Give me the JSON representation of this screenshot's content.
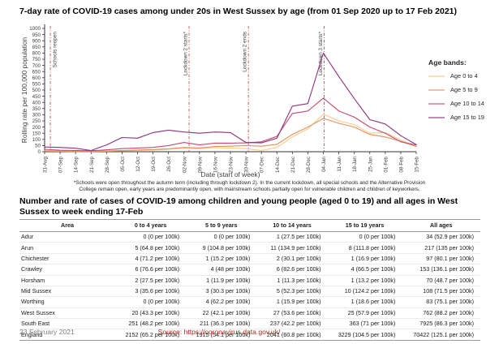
{
  "chart": {
    "title": "7-day rate of COVID-19 cases among under 20s in West Sussex by age (from 01 Sep 2020 up to 17 Feb 2021)",
    "legend_title": "Age bands:",
    "footnote_line1": "*Schools were open throughout the autumn term (including through lockdown 2). In the current lockdown, all special schools and the Alternative Provision",
    "footnote_line2": "College remain open, early years are predominantly open, with mainstream schools partially open for vulnerable children and children of keyworkers."
  },
  "chart_data": {
    "type": "line",
    "title": "7-day rate of COVID-19 cases among under 20s in West Sussex by age (from 01 Sep 2020 up to 17 Feb 2021)",
    "xlabel": "Date (start of week)",
    "ylabel": "Rolling rate per 100,000 population",
    "ylim": [
      0,
      1000
    ],
    "ytick_step": 50,
    "grid": false,
    "legend_position": "right",
    "x": [
      "31-Aug",
      "07-Sep",
      "14-Sep",
      "21-Sep",
      "28-Sep",
      "05-Oct",
      "12-Oct",
      "19-Oct",
      "26-Oct",
      "02-Nov",
      "09-Nov",
      "16-Nov",
      "23-Nov",
      "30-Nov",
      "07-Dec",
      "14-Dec",
      "21-Dec",
      "28-Dec",
      "04-Jan",
      "11-Jan",
      "18-Jan",
      "25-Jan",
      "01-Feb",
      "08-Feb",
      "15-Feb"
    ],
    "series": [
      {
        "name": "Age 0 to 4",
        "color": "#f8c98e",
        "values": [
          5,
          3,
          2,
          2,
          4,
          8,
          10,
          14,
          20,
          28,
          25,
          33,
          30,
          25,
          10,
          35,
          120,
          185,
          305,
          250,
          220,
          150,
          155,
          95,
          43
        ]
      },
      {
        "name": "Age 5 to 9",
        "color": "#e29061",
        "values": [
          8,
          5,
          4,
          3,
          6,
          10,
          14,
          18,
          24,
          35,
          30,
          42,
          45,
          50,
          45,
          60,
          140,
          200,
          270,
          230,
          200,
          140,
          120,
          85,
          42
        ]
      },
      {
        "name": "Age 10 to 14",
        "color": "#c64a6a",
        "values": [
          20,
          12,
          10,
          8,
          15,
          25,
          30,
          35,
          50,
          75,
          55,
          70,
          70,
          72,
          80,
          125,
          310,
          330,
          435,
          330,
          280,
          200,
          150,
          80,
          54
        ]
      },
      {
        "name": "Age 15 to 19",
        "color": "#8e3181",
        "values": [
          38,
          35,
          28,
          10,
          55,
          115,
          110,
          155,
          175,
          160,
          150,
          160,
          155,
          75,
          72,
          110,
          370,
          390,
          800,
          610,
          430,
          260,
          225,
          130,
          58
        ]
      }
    ],
    "vlines": [
      {
        "label": "Schools reopen",
        "week_index": 0.37
      },
      {
        "label": "Lockdown 2 starts*",
        "week_index": 9.33
      },
      {
        "label": "Lockdown 2 ends",
        "week_index": 13.16
      },
      {
        "label": "Lockdown 3 starts*",
        "week_index": 18.05
      }
    ],
    "vline_color": "#c0504d"
  },
  "table_section": {
    "title": "Number and rate of cases of COVID-19 among children and young people (aged 0 to 19) and all ages in West Sussex to week ending 17-Feb",
    "columns": [
      "Area",
      "0 to 4 years",
      "5 to 9 years",
      "10 to 14 years",
      "15 to 19 years",
      "All ages"
    ],
    "rows": [
      {
        "area": "Adur",
        "values": [
          "0 (0 per 100k)",
          "0 (0 per 100k)",
          "1 (27.5 per 100k)",
          "0 (0 per 100k)",
          "34 (52.9 per 100k)"
        ]
      },
      {
        "area": "Arun",
        "values": [
          "5 (64.8 per 100k)",
          "9 (104.8 per 100k)",
          "11 (134.9 per 100k)",
          "8 (111.8 per 100k)",
          "217 (135 per 100k)"
        ]
      },
      {
        "area": "Chichester",
        "values": [
          "4 (71.2 per 100k)",
          "1 (15.2 per 100k)",
          "2 (30.1 per 100k)",
          "1 (16.9 per 100k)",
          "97 (80.1 per 100k)"
        ]
      },
      {
        "area": "Crawley",
        "values": [
          "6 (76.6 per 100k)",
          "4 (48 per 100k)",
          "6 (82.6 per 100k)",
          "4 (66.5 per 100k)",
          "153 (136.1 per 100k)"
        ]
      },
      {
        "area": "Horsham",
        "values": [
          "2 (27.5 per 100k)",
          "1 (11.9 per 100k)",
          "1 (11.3 per 100k)",
          "1 (13.2 per 100k)",
          "70 (48.7 per 100k)"
        ]
      },
      {
        "area": "Mid Sussex",
        "values": [
          "3 (35.6 per 100k)",
          "3 (30.3 per 100k)",
          "5 (52.3 per 100k)",
          "10 (124.2 per 100k)",
          "108 (71.5 per 100k)"
        ]
      },
      {
        "area": "Worthing",
        "values": [
          "0 (0 per 100k)",
          "4 (62.2 per 100k)",
          "1 (15.9 per 100k)",
          "1 (18.6 per 100k)",
          "83 (75.1 per 100k)"
        ]
      },
      {
        "area": "West Sussex",
        "values": [
          "20 (43.3 per 100k)",
          "22 (42.1 per 100k)",
          "27 (53.6 per 100k)",
          "25 (57.9 per 100k)",
          "762 (88.2 per 100k)"
        ]
      },
      {
        "area": "South East",
        "values": [
          "251 (48.2 per 100k)",
          "211 (36.3 per 100k)",
          "237 (42.2 per 100k)",
          "363 (71 per 100k)",
          "7925 (86.3 per 100k)"
        ]
      },
      {
        "area": "England",
        "values": [
          "2152 (65.2 per 100k)",
          "1915 (54.1 per 100k)",
          "2041 (60.8 per 100k)",
          "3229 (104.5 per 100k)",
          "70422 (125.1 per 100k)"
        ]
      }
    ],
    "aggregate_rows_start": 7
  },
  "footer": {
    "date": "23 February 2021",
    "source": "Source: https://coronavirus.data.gov.uk/"
  }
}
